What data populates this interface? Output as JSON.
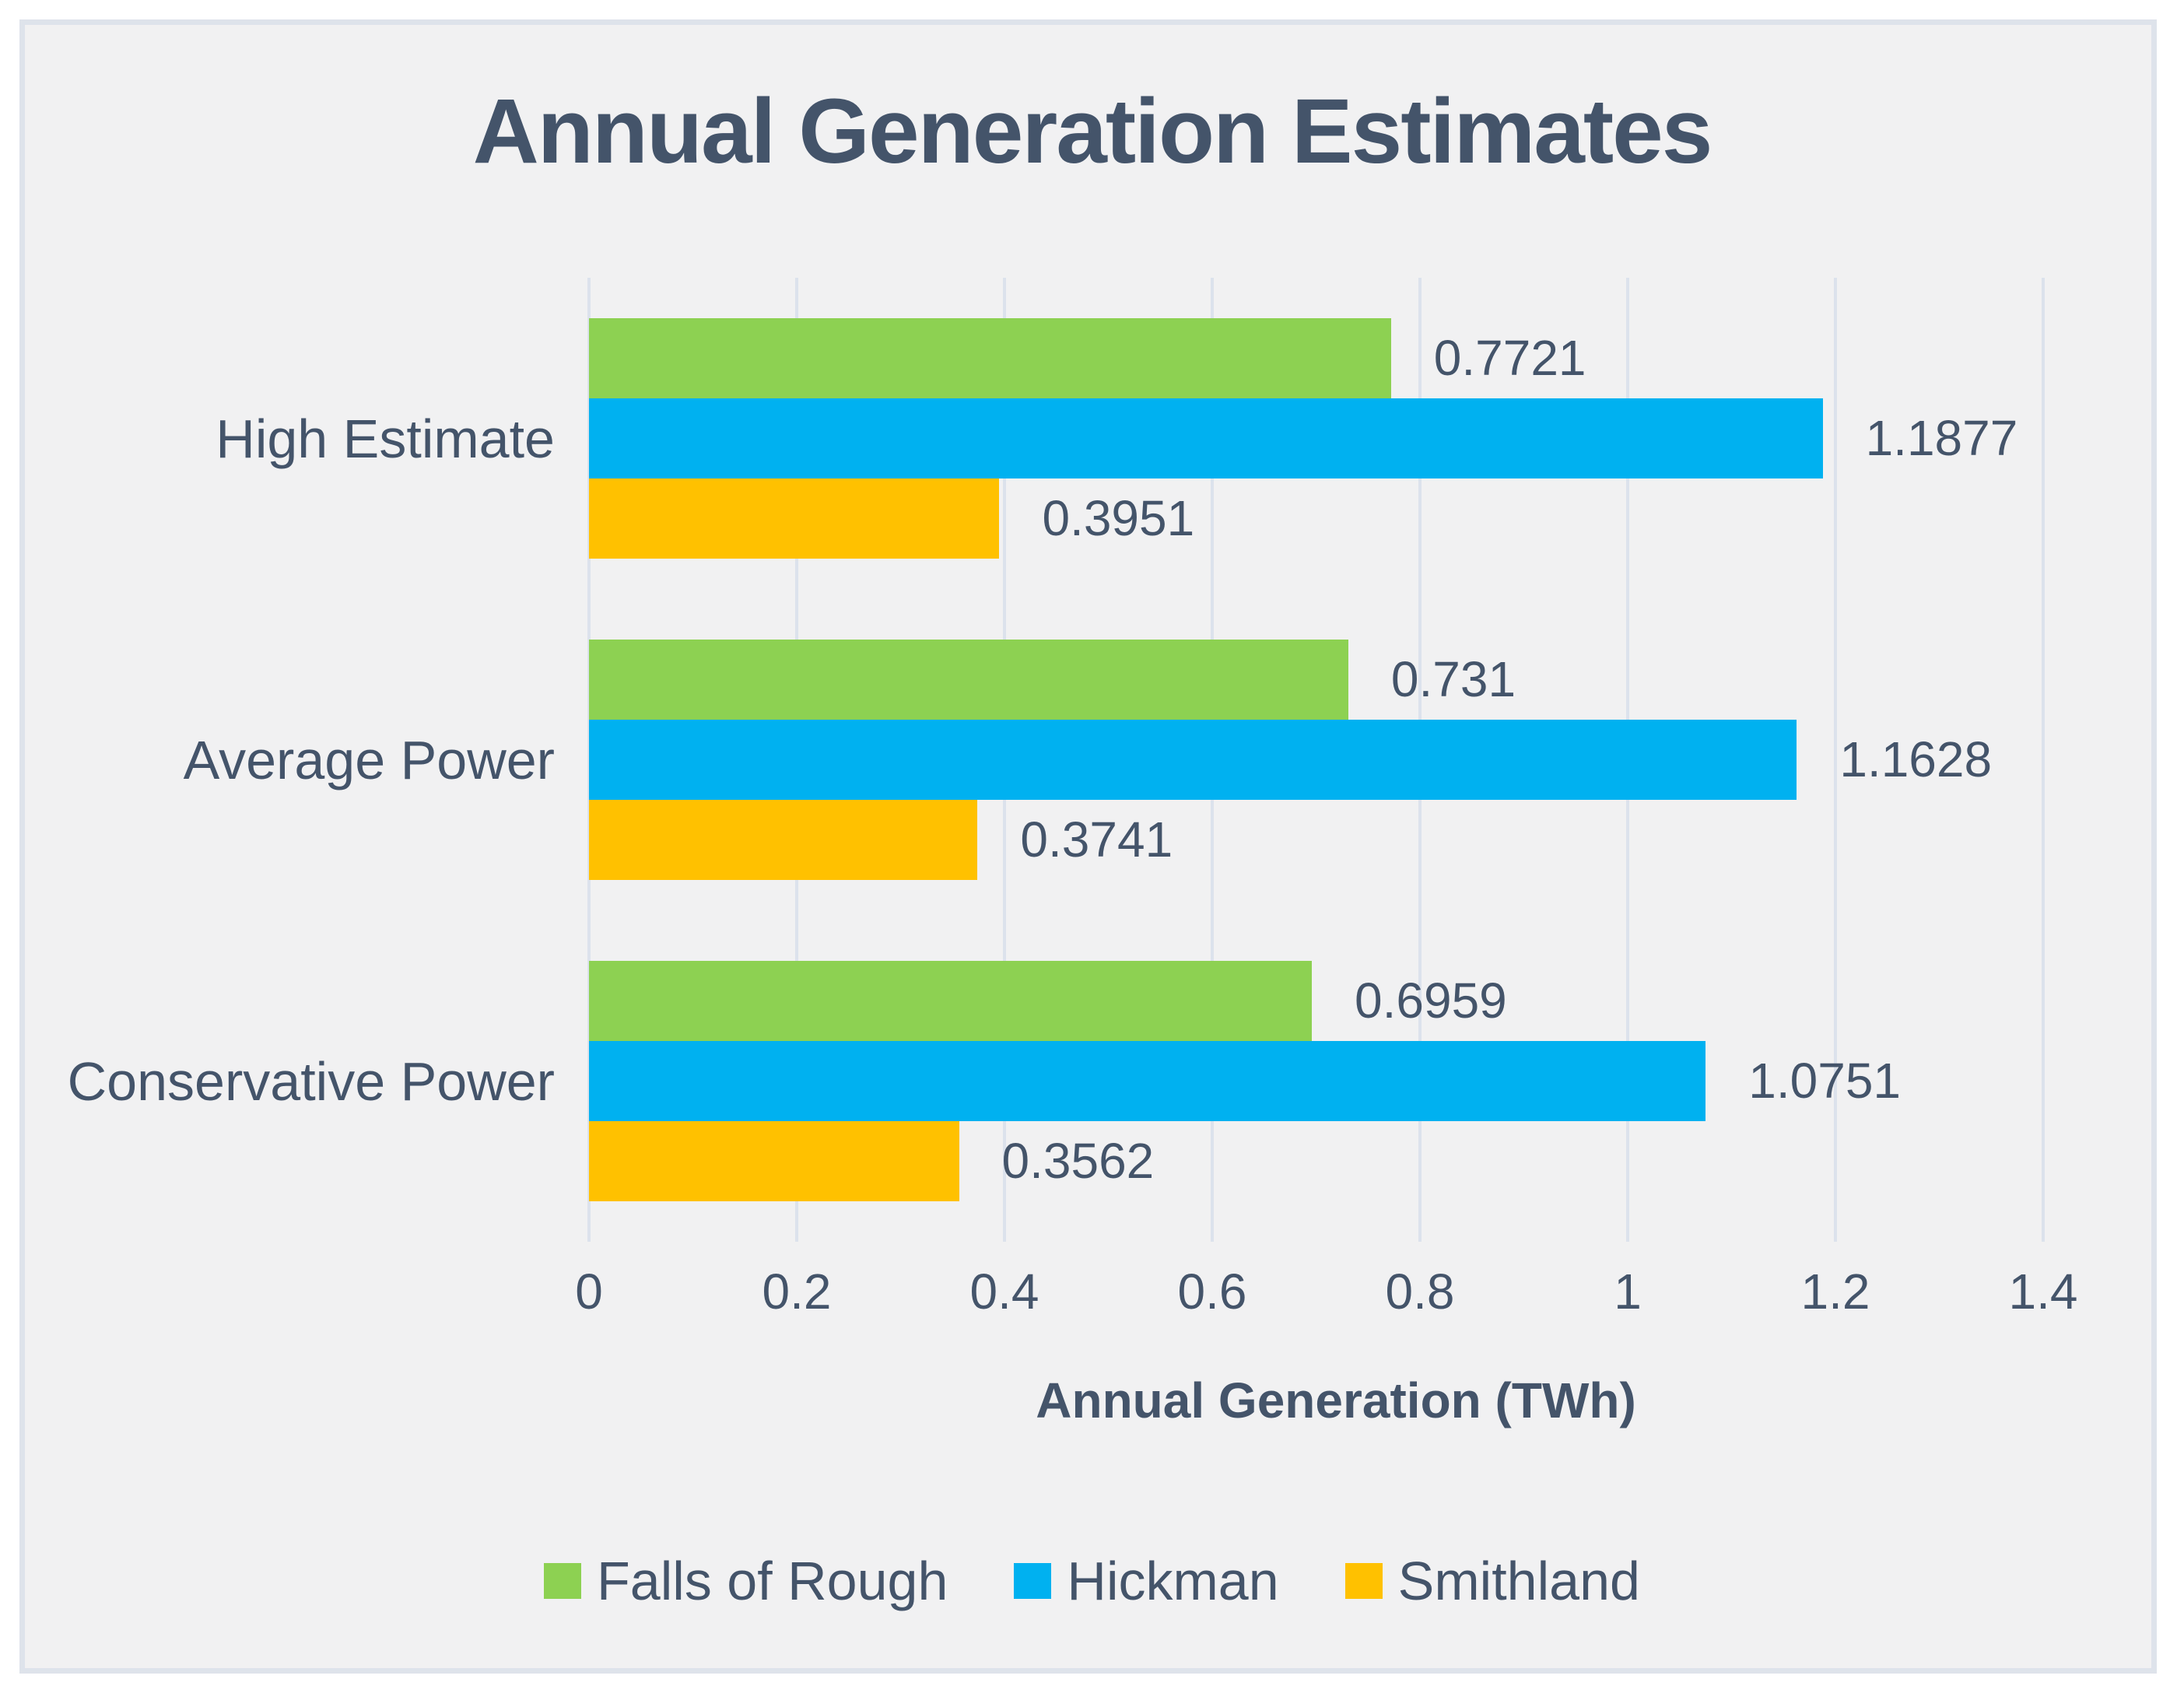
{
  "chart_data": {
    "type": "bar",
    "orientation": "horizontal",
    "title": "Annual Generation Estimates",
    "xlabel": "Annual Generation (TWh)",
    "ylabel": "",
    "categories": [
      "High Estimate",
      "Average Power",
      "Conservative Power"
    ],
    "series": [
      {
        "name": "Falls of Rough",
        "color": "#8DD152",
        "values": [
          0.7721,
          0.731,
          0.6959
        ],
        "labels": [
          "0.7721",
          "0.731",
          "0.6959"
        ]
      },
      {
        "name": "Hickman",
        "color": "#00B1F0",
        "values": [
          1.1877,
          1.1628,
          1.0751
        ],
        "labels": [
          "1.1877",
          "1.1628",
          "1.0751"
        ]
      },
      {
        "name": "Smithland",
        "color": "#FFC100",
        "values": [
          0.3951,
          0.3741,
          0.3562
        ],
        "labels": [
          "0.3951",
          "0.3741",
          "0.3562"
        ]
      }
    ],
    "xlim": [
      0,
      1.4
    ],
    "xticks": [
      "0",
      "0.2",
      "0.4",
      "0.6",
      "0.8",
      "1",
      "1.2",
      "1.4"
    ],
    "grid": true,
    "legend_position": "bottom"
  },
  "colors": {
    "text": "#44546A",
    "grid": "#DCE2EC",
    "background": "#F1F1F2",
    "frame_border": "#DEE3EB"
  }
}
